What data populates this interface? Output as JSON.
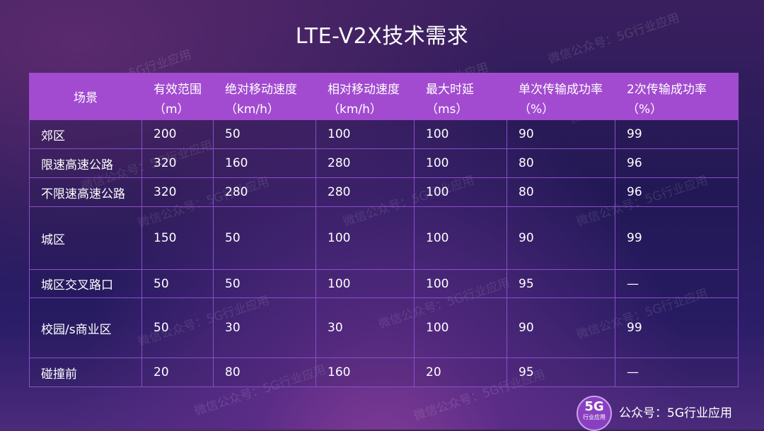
{
  "title": "LTE-V2X技术需求",
  "table": {
    "headers": [
      {
        "l1": "场景",
        "l2": ""
      },
      {
        "l1": "有效范围",
        "l2": "（m）"
      },
      {
        "l1": "绝对移动速度",
        "l2": "（km/h）"
      },
      {
        "l1": "相对移动速度",
        "l2": "（km/h）"
      },
      {
        "l1": "最大时延",
        "l2": "（ms）"
      },
      {
        "l1": "单次传输成功率",
        "l2": "（%）"
      },
      {
        "l1": "2次传输成功率",
        "l2": "（%）"
      }
    ],
    "rows": [
      [
        "郊区",
        "200",
        "50",
        "100",
        "100",
        "90",
        "99"
      ],
      [
        "限速高速公路",
        "320",
        "160",
        "280",
        "100",
        "80",
        "96"
      ],
      [
        "不限速高速公路",
        "320",
        "280",
        "280",
        "100",
        "80",
        "96"
      ],
      [
        "城区",
        "150",
        "50",
        "100",
        "100",
        "90",
        "99"
      ],
      [
        "城区交叉路口",
        "50",
        "50",
        "100",
        "100",
        "95",
        "—"
      ],
      [
        "校园/s商业区",
        "50",
        "30",
        "30",
        "100",
        "90",
        "99"
      ],
      [
        "碰撞前",
        "20",
        "80",
        "160",
        "20",
        "95",
        "—"
      ]
    ]
  },
  "watermark": "微信公众号：5G行业应用",
  "badge": {
    "big": "5G",
    "small": "行业应用"
  },
  "account": "公众号：5G行业应用"
}
